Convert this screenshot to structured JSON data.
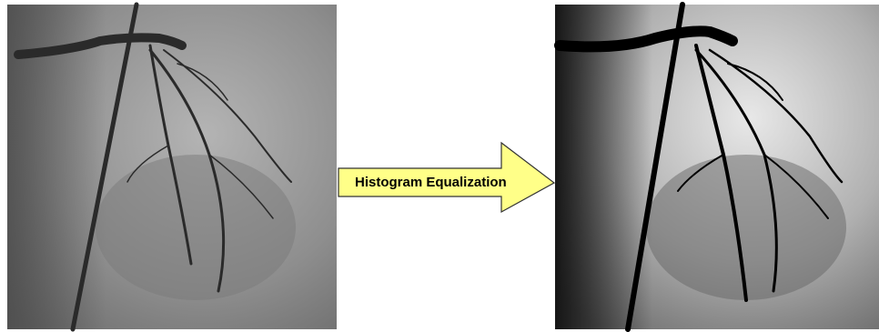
{
  "arrow": {
    "label": "Histogram Equalization"
  }
}
